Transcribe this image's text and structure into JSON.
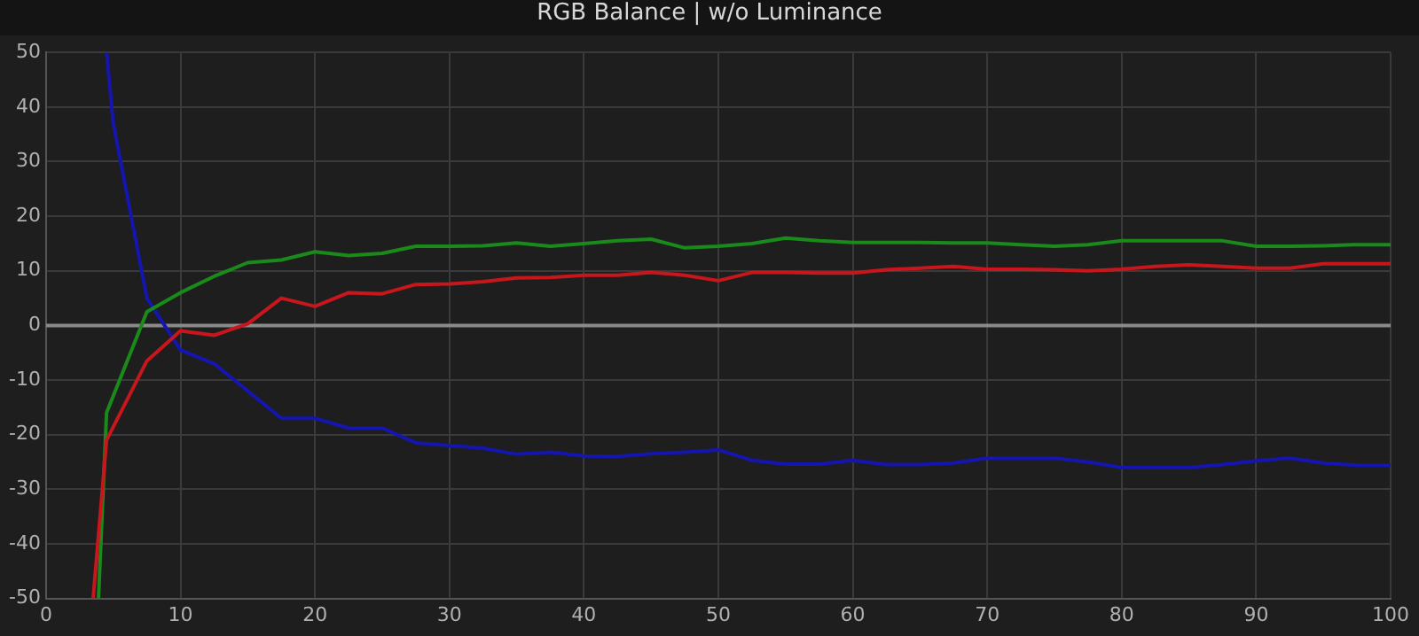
{
  "chart_data": {
    "type": "line",
    "title": "RGB Balance | w/o Luminance",
    "xlim": [
      0,
      100
    ],
    "xticks": [
      0,
      10,
      20,
      30,
      40,
      50,
      60,
      70,
      80,
      90,
      100
    ],
    "ylim": [
      -50,
      50
    ],
    "yticks": [
      -50,
      -40,
      -30,
      -20,
      -10,
      0,
      10,
      20,
      30,
      40,
      50
    ],
    "grid": true,
    "legend": false,
    "marker": "none",
    "line_style": "solid",
    "ref_lines": [
      {
        "axis": "y",
        "value": 0,
        "color": "#8a8a8a"
      }
    ],
    "series": [
      {
        "color": "#c8161d",
        "x": [
          3.5,
          4.5,
          7.5,
          10,
          12.5,
          15,
          17.5,
          20,
          22.5,
          25,
          27.5,
          30,
          32.5,
          35,
          37.5,
          40,
          42.5,
          45,
          47.5,
          50,
          52.5,
          55,
          57.5,
          60,
          62.5,
          65,
          67.5,
          70,
          72.5,
          75,
          77.5,
          80,
          82.5,
          85,
          87.5,
          90,
          92.5,
          95,
          97.5,
          100
        ],
        "values": [
          -50,
          -21,
          -6.5,
          -1,
          -1.8,
          0.3,
          5,
          3.5,
          6,
          5.8,
          7.5,
          7.6,
          8,
          8.7,
          8.8,
          9.2,
          9.2,
          9.7,
          9.2,
          8.2,
          9.7,
          9.7,
          9.6,
          9.6,
          10.2,
          10.5,
          10.8,
          10.3,
          10.3,
          10.2,
          10,
          10.3,
          10.8,
          11.1,
          10.8,
          10.5,
          10.5,
          11.3,
          11.3,
          11.3
        ]
      },
      {
        "color": "#1a8a1a",
        "x": [
          3.9,
          4.5,
          7.5,
          10,
          12.5,
          15,
          17.5,
          20,
          22.5,
          25,
          27.5,
          30,
          32.5,
          35,
          37.5,
          40,
          42.5,
          45,
          47.5,
          50,
          52.5,
          55,
          57.5,
          60,
          62.5,
          65,
          67.5,
          70,
          72.5,
          75,
          77.5,
          80,
          82.5,
          85,
          87.5,
          90,
          92.5,
          95,
          97.5,
          100
        ],
        "values": [
          -50,
          -16,
          2.5,
          6,
          9,
          11.5,
          12,
          13.5,
          12.8,
          13.2,
          14.5,
          14.5,
          14.6,
          15.1,
          14.5,
          15,
          15.5,
          15.8,
          14.2,
          14.5,
          15,
          16,
          15.5,
          15.2,
          15.2,
          15.2,
          15.1,
          15.1,
          14.8,
          14.5,
          14.8,
          15.5,
          15.5,
          15.5,
          15.5,
          14.5,
          14.5,
          14.6,
          14.8,
          14.8
        ]
      },
      {
        "color": "#1515b0",
        "x": [
          4.5,
          5,
          7.5,
          10,
          12.5,
          15,
          17.5,
          20,
          22.5,
          25,
          27.5,
          30,
          32.5,
          35,
          37.5,
          40,
          42.5,
          45,
          47.5,
          50,
          52.5,
          55,
          57.5,
          60,
          62.5,
          65,
          67.5,
          70,
          72.5,
          75,
          77.5,
          80,
          82.5,
          85,
          87.5,
          90,
          92.5,
          95,
          97.5,
          100
        ],
        "values": [
          50,
          37,
          5,
          -4.5,
          -7,
          -12,
          -17,
          -17,
          -18.8,
          -18.8,
          -21.5,
          -22,
          -22.5,
          -23.6,
          -23.2,
          -23.9,
          -24,
          -23.5,
          -23.2,
          -22.8,
          -24.7,
          -25.4,
          -25.4,
          -24.7,
          -25.5,
          -25.5,
          -25.2,
          -24.3,
          -24.3,
          -24.3,
          -25,
          -26,
          -26,
          -26,
          -25.5,
          -24.8,
          -24.3,
          -25.2,
          -25.6,
          -25.6
        ]
      }
    ]
  }
}
